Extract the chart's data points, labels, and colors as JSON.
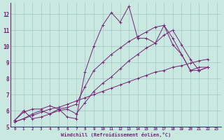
{
  "xlabel": "Windchill (Refroidissement éolien,°C)",
  "bg_color": "#c8e8e0",
  "grid_color": "#aacccc",
  "line_color": "#772277",
  "xlim": [
    -0.5,
    23.5
  ],
  "ylim": [
    5.0,
    12.7
  ],
  "xticks": [
    0,
    1,
    2,
    3,
    4,
    5,
    6,
    7,
    8,
    9,
    10,
    11,
    12,
    13,
    14,
    15,
    16,
    17,
    18,
    19,
    20,
    21,
    22,
    23
  ],
  "yticks": [
    5,
    6,
    7,
    8,
    9,
    10,
    11,
    12
  ],
  "series1_x": [
    0,
    1,
    2,
    3,
    4,
    5,
    6,
    7,
    8,
    9,
    10,
    11,
    12,
    13,
    14,
    15,
    16,
    17,
    18,
    19,
    20,
    21,
    22
  ],
  "series1_y": [
    5.4,
    6.0,
    5.5,
    5.6,
    5.8,
    6.1,
    5.6,
    5.5,
    8.4,
    10.0,
    11.3,
    12.1,
    11.5,
    12.5,
    10.5,
    10.5,
    10.2,
    11.3,
    10.1,
    9.5,
    8.5,
    8.7,
    8.7
  ],
  "series2_x": [
    0,
    1,
    2,
    3,
    4,
    5,
    6,
    7,
    8,
    9,
    10,
    11,
    12,
    13,
    14,
    15,
    16,
    17,
    18,
    19,
    20,
    21,
    22
  ],
  "series2_y": [
    5.4,
    5.9,
    6.1,
    6.1,
    6.3,
    6.1,
    6.2,
    6.4,
    7.5,
    8.5,
    9.0,
    9.5,
    9.9,
    10.3,
    10.6,
    10.9,
    11.2,
    11.3,
    10.5,
    9.5,
    8.5,
    8.5,
    8.7
  ],
  "series3_x": [
    0,
    1,
    2,
    3,
    4,
    5,
    6,
    7,
    8,
    9,
    10,
    11,
    12,
    13,
    14,
    15,
    16,
    17,
    18,
    19,
    20,
    21,
    22
  ],
  "series3_y": [
    5.3,
    5.5,
    5.8,
    6.0,
    5.8,
    6.0,
    6.1,
    5.8,
    6.5,
    7.2,
    7.7,
    8.1,
    8.6,
    9.1,
    9.5,
    9.9,
    10.2,
    10.7,
    11.0,
    10.1,
    9.2,
    8.5,
    8.7
  ],
  "series4_x": [
    0,
    1,
    2,
    3,
    4,
    5,
    6,
    7,
    8,
    9,
    10,
    11,
    12,
    13,
    14,
    15,
    16,
    17,
    18,
    19,
    20,
    21,
    22
  ],
  "series4_y": [
    5.3,
    5.5,
    5.7,
    5.9,
    6.1,
    6.2,
    6.4,
    6.6,
    6.8,
    7.0,
    7.2,
    7.4,
    7.6,
    7.8,
    8.0,
    8.2,
    8.4,
    8.5,
    8.7,
    8.8,
    8.95,
    9.1,
    9.2
  ]
}
